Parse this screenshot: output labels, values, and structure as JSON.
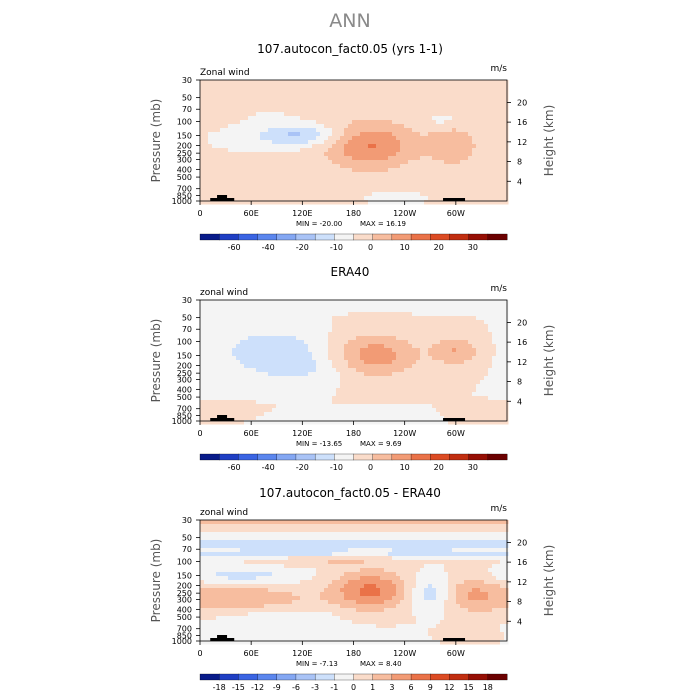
{
  "figure_title": "ANN",
  "chart_data": [
    {
      "type": "contour",
      "title": "107.autocon_fact0.05 (yrs 1-1)",
      "variable": "Zonal wind",
      "units": "m/s",
      "ylabel": "Pressure (mb)",
      "y2label": "Height (km)",
      "pressure_ticks": [
        "30",
        "50",
        "70",
        "100",
        "150",
        "200",
        "250",
        "300",
        "400",
        "500",
        "700",
        "850",
        "1000"
      ],
      "height_ticks": [
        "4",
        "8",
        "12",
        "16",
        "20"
      ],
      "xticks": [
        "0",
        "60E",
        "120E",
        "180",
        "120W",
        "60W"
      ],
      "min_label": "MIN = -20.00",
      "max_label": "MAX = 16.19",
      "min": -20.0,
      "max": 16.19,
      "colorbar_labels": [
        "-60",
        "-40",
        "-20",
        "-10",
        "0",
        "10",
        "20",
        "30"
      ],
      "colorbar_colors": [
        "#081b8a",
        "#1f3fc4",
        "#3a64e3",
        "#5b86ee",
        "#84a7f3",
        "#a9c3f6",
        "#cde0fb",
        "#f4f4f4",
        "#fadcca",
        "#f7bd9f",
        "#f29b75",
        "#ea7248",
        "#dc4b23",
        "#c12e10",
        "#960f04",
        "#6b0000"
      ],
      "features": [
        {
          "label": "positive",
          "x": 15,
          "p": 70,
          "rx": 18,
          "ry": 0.3,
          "v": 2
        },
        {
          "label": "negative",
          "x": 115,
          "p": 150,
          "rx": 35,
          "ry": 0.2,
          "v": -12
        },
        {
          "label": "positive",
          "x": 60,
          "p": 500,
          "rx": 45,
          "ry": 0.28,
          "v": 5
        },
        {
          "label": "positive",
          "x": 200,
          "p": 200,
          "rx": 38,
          "ry": 0.5,
          "v": 16
        },
        {
          "label": "positive",
          "x": 298,
          "p": 200,
          "rx": 22,
          "ry": 0.45,
          "v": 9
        },
        {
          "label": "negative",
          "x": 285,
          "p": 100,
          "rx": 18,
          "ry": 0.15,
          "v": -3
        },
        {
          "label": "negative",
          "x": 225,
          "p": 900,
          "rx": 15,
          "ry": 0.08,
          "v": -2
        },
        {
          "label": "positive",
          "x": 340,
          "p": 780,
          "rx": 20,
          "ry": 0.16,
          "v": 3
        }
      ]
    },
    {
      "type": "contour",
      "title": "ERA40",
      "variable": "zonal wind",
      "units": "m/s",
      "ylabel": "Pressure (mb)",
      "y2label": "Height (km)",
      "pressure_ticks": [
        "30",
        "50",
        "70",
        "100",
        "150",
        "200",
        "250",
        "300",
        "400",
        "500",
        "700",
        "850",
        "1000"
      ],
      "height_ticks": [
        "4",
        "8",
        "12",
        "16",
        "20"
      ],
      "xticks": [
        "0",
        "60E",
        "120E",
        "180",
        "120W",
        "60W"
      ],
      "min_label": "MIN = -13.65",
      "max_label": "MAX = 9.69",
      "min": -13.65,
      "max": 9.69,
      "colorbar_labels": [
        "-60",
        "-40",
        "-20",
        "-10",
        "0",
        "10",
        "20",
        "30"
      ],
      "colorbar_colors": [
        "#081b8a",
        "#1f3fc4",
        "#3a64e3",
        "#5b86ee",
        "#84a7f3",
        "#a9c3f6",
        "#cde0fb",
        "#f4f4f4",
        "#fadcca",
        "#f7bd9f",
        "#f29b75",
        "#ea7248",
        "#dc4b23",
        "#c12e10",
        "#960f04",
        "#6b0000"
      ],
      "features": [
        {
          "label": "negative",
          "x": 0,
          "p": 35,
          "rx": 400,
          "ry": 0.1,
          "v": -3
        },
        {
          "label": "negative",
          "x": 85,
          "p": 130,
          "rx": 45,
          "ry": 0.45,
          "v": -6
        },
        {
          "label": "negative",
          "x": 120,
          "p": 230,
          "rx": 40,
          "ry": 0.3,
          "v": -3
        },
        {
          "label": "positive",
          "x": 205,
          "p": 150,
          "rx": 35,
          "ry": 0.45,
          "v": 9
        },
        {
          "label": "positive",
          "x": 300,
          "p": 130,
          "rx": 20,
          "ry": 0.3,
          "v": 7
        },
        {
          "label": "positive",
          "x": 35,
          "p": 800,
          "rx": 30,
          "ry": 0.12,
          "v": 3
        },
        {
          "label": "negative",
          "x": 145,
          "p": 850,
          "rx": 80,
          "ry": 0.12,
          "v": -2
        },
        {
          "label": "positive",
          "x": 330,
          "p": 800,
          "rx": 25,
          "ry": 0.12,
          "v": 3
        }
      ]
    },
    {
      "type": "contour",
      "title": "107.autocon_fact0.05 - ERA40",
      "variable": "zonal wind",
      "units": "m/s",
      "ylabel": "Pressure (mb)",
      "y2label": "Height (km)",
      "pressure_ticks": [
        "30",
        "50",
        "70",
        "100",
        "150",
        "200",
        "250",
        "300",
        "400",
        "500",
        "700",
        "850",
        "1000"
      ],
      "height_ticks": [
        "4",
        "8",
        "12",
        "16",
        "20"
      ],
      "xticks": [
        "0",
        "60E",
        "120E",
        "180",
        "120W",
        "60W"
      ],
      "min_label": "MIN = -7.13",
      "max_label": "MAX = 8.40",
      "min": -7.13,
      "max": 8.4,
      "colorbar_labels": [
        "-18",
        "-15",
        "-12",
        "-9",
        "-6",
        "-3",
        "-1",
        "0",
        "1",
        "3",
        "6",
        "9",
        "12",
        "15",
        "18"
      ],
      "colorbar_colors": [
        "#081b8a",
        "#1f3fc4",
        "#3a64e3",
        "#5b86ee",
        "#84a7f3",
        "#a9c3f6",
        "#cde0fb",
        "#f4f4f4",
        "#fadcca",
        "#f7bd9f",
        "#f29b75",
        "#ea7248",
        "#dc4b23",
        "#c12e10",
        "#960f04",
        "#6b0000"
      ],
      "features": [
        {
          "label": "positive",
          "x": 180,
          "p": 32,
          "rx": 500,
          "ry": 0.12,
          "v": 3
        },
        {
          "label": "negative",
          "x": 180,
          "p": 60,
          "rx": 500,
          "ry": 0.15,
          "v": -3
        },
        {
          "label": "negative",
          "x": 180,
          "p": 80,
          "rx": 500,
          "ry": 0.08,
          "v": -2
        },
        {
          "label": "positive",
          "x": 150,
          "p": 100,
          "rx": 50,
          "ry": 0.1,
          "v": 2
        },
        {
          "label": "negative",
          "x": 50,
          "p": 150,
          "rx": 50,
          "ry": 0.18,
          "v": -3
        },
        {
          "label": "positive",
          "x": 200,
          "p": 230,
          "rx": 32,
          "ry": 0.4,
          "v": 7
        },
        {
          "label": "positive",
          "x": 55,
          "p": 300,
          "rx": 55,
          "ry": 0.3,
          "v": 4
        },
        {
          "label": "negative",
          "x": 90,
          "p": 500,
          "rx": 50,
          "ry": 0.25,
          "v": -2
        },
        {
          "label": "negative",
          "x": 270,
          "p": 250,
          "rx": 18,
          "ry": 0.35,
          "v": -4
        },
        {
          "label": "positive",
          "x": 320,
          "p": 250,
          "rx": 25,
          "ry": 0.4,
          "v": 4
        },
        {
          "label": "negative",
          "x": 180,
          "p": 900,
          "rx": 60,
          "ry": 0.15,
          "v": -2
        },
        {
          "label": "positive",
          "x": 300,
          "p": 850,
          "rx": 20,
          "ry": 0.12,
          "v": 2
        }
      ]
    }
  ]
}
